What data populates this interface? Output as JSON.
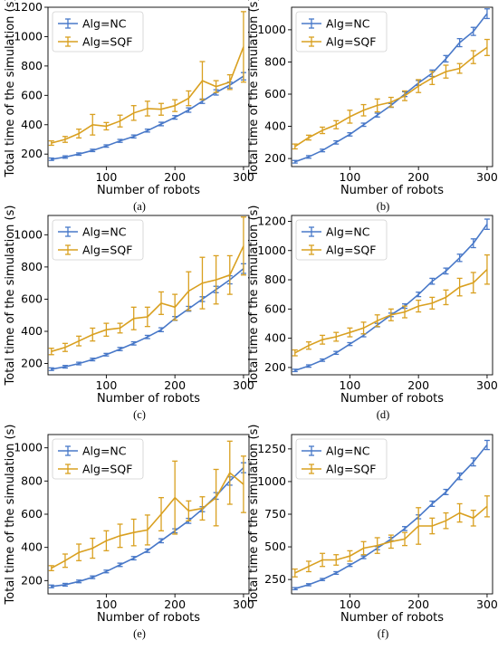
{
  "figure": {
    "colors": {
      "nc": "#4878c8",
      "sqf": "#d9a020"
    },
    "series_names": [
      "Alg=NC",
      "Alg=SQF"
    ],
    "x_ticks": [
      100,
      200,
      300
    ],
    "xlabel": "Number of robots",
    "ylabel": "Total time of the simulation (s)"
  },
  "chart_data": [
    {
      "type": "line",
      "caption": "(a)",
      "xlim": [
        15,
        308
      ],
      "ylim": [
        115,
        1200
      ],
      "y_ticks": [
        200,
        400,
        600,
        800,
        1000,
        1200
      ],
      "x": [
        20,
        40,
        60,
        80,
        100,
        120,
        140,
        160,
        180,
        200,
        220,
        240,
        260,
        280,
        300
      ],
      "series": [
        {
          "name": "Alg=NC",
          "values": [
            165,
            180,
            200,
            225,
            255,
            290,
            320,
            360,
            405,
            450,
            500,
            560,
            620,
            670,
            730
          ],
          "err": [
            8,
            8,
            8,
            8,
            8,
            10,
            10,
            10,
            12,
            12,
            15,
            15,
            18,
            20,
            25
          ]
        },
        {
          "name": "Alg=SQF",
          "values": [
            275,
            300,
            340,
            400,
            390,
            425,
            480,
            510,
            505,
            530,
            580,
            700,
            660,
            690,
            930
          ],
          "err": [
            15,
            20,
            30,
            70,
            25,
            40,
            50,
            50,
            40,
            40,
            50,
            130,
            40,
            50,
            240
          ]
        }
      ]
    },
    {
      "type": "line",
      "caption": "(b)",
      "xlim": [
        15,
        308
      ],
      "ylim": [
        150,
        1140
      ],
      "y_ticks": [
        200,
        400,
        600,
        800,
        1000
      ],
      "x": [
        20,
        40,
        60,
        80,
        100,
        120,
        140,
        160,
        180,
        200,
        220,
        240,
        260,
        280,
        300
      ],
      "series": [
        {
          "name": "Alg=NC",
          "values": [
            180,
            210,
            250,
            300,
            350,
            410,
            470,
            530,
            600,
            670,
            730,
            820,
            920,
            990,
            1100
          ],
          "err": [
            8,
            8,
            8,
            10,
            10,
            10,
            12,
            12,
            15,
            15,
            20,
            20,
            25,
            25,
            30
          ]
        },
        {
          "name": "Alg=SQF",
          "values": [
            275,
            330,
            375,
            410,
            460,
            500,
            530,
            550,
            590,
            650,
            700,
            740,
            760,
            830,
            890
          ],
          "err": [
            15,
            15,
            20,
            25,
            40,
            35,
            40,
            30,
            30,
            40,
            40,
            40,
            30,
            40,
            50
          ]
        }
      ]
    },
    {
      "type": "line",
      "caption": "(c)",
      "xlim": [
        15,
        308
      ],
      "ylim": [
        130,
        1120
      ],
      "y_ticks": [
        200,
        400,
        600,
        800,
        1000
      ],
      "x": [
        20,
        40,
        60,
        80,
        100,
        120,
        140,
        160,
        180,
        200,
        220,
        240,
        260,
        280,
        300
      ],
      "series": [
        {
          "name": "Alg=NC",
          "values": [
            165,
            180,
            200,
            225,
            255,
            290,
            325,
            365,
            410,
            480,
            540,
            600,
            660,
            720,
            790
          ],
          "err": [
            8,
            8,
            8,
            8,
            8,
            10,
            10,
            10,
            12,
            12,
            15,
            15,
            20,
            25,
            30
          ]
        },
        {
          "name": "Alg=SQF",
          "values": [
            275,
            300,
            340,
            380,
            410,
            420,
            480,
            490,
            575,
            550,
            650,
            700,
            720,
            750,
            930
          ],
          "err": [
            20,
            25,
            30,
            40,
            40,
            30,
            70,
            60,
            70,
            80,
            120,
            160,
            150,
            120,
            180
          ]
        }
      ]
    },
    {
      "type": "line",
      "caption": "(d)",
      "xlim": [
        15,
        308
      ],
      "ylim": [
        150,
        1240
      ],
      "y_ticks": [
        200,
        400,
        600,
        800,
        1000,
        1200
      ],
      "x": [
        20,
        40,
        60,
        80,
        100,
        120,
        140,
        160,
        180,
        200,
        220,
        240,
        260,
        280,
        300
      ],
      "series": [
        {
          "name": "Alg=NC",
          "values": [
            180,
            210,
            250,
            300,
            360,
            420,
            490,
            560,
            620,
            700,
            790,
            860,
            950,
            1050,
            1180
          ],
          "err": [
            8,
            8,
            8,
            10,
            10,
            10,
            12,
            12,
            15,
            15,
            20,
            20,
            25,
            30,
            35
          ]
        },
        {
          "name": "Alg=SQF",
          "values": [
            300,
            350,
            390,
            410,
            440,
            470,
            520,
            560,
            580,
            620,
            640,
            680,
            750,
            780,
            870
          ],
          "err": [
            20,
            25,
            30,
            30,
            30,
            40,
            40,
            40,
            40,
            40,
            40,
            50,
            60,
            70,
            100
          ]
        }
      ]
    },
    {
      "type": "line",
      "caption": "(e)",
      "xlim": [
        15,
        308
      ],
      "ylim": [
        120,
        1080
      ],
      "y_ticks": [
        200,
        400,
        600,
        800,
        1000
      ],
      "x": [
        20,
        40,
        60,
        80,
        100,
        120,
        140,
        160,
        180,
        200,
        220,
        240,
        260,
        280,
        300
      ],
      "series": [
        {
          "name": "Alg=NC",
          "values": [
            165,
            175,
            195,
            220,
            255,
            295,
            335,
            380,
            440,
            500,
            560,
            630,
            710,
            800,
            880
          ],
          "err": [
            8,
            8,
            8,
            8,
            8,
            10,
            10,
            10,
            12,
            12,
            15,
            15,
            20,
            25,
            30
          ]
        },
        {
          "name": "Alg=SQF",
          "values": [
            275,
            320,
            370,
            395,
            440,
            470,
            490,
            505,
            600,
            700,
            620,
            635,
            700,
            850,
            780
          ],
          "err": [
            15,
            40,
            50,
            60,
            60,
            70,
            80,
            90,
            100,
            220,
            60,
            70,
            170,
            190,
            170
          ]
        }
      ]
    },
    {
      "type": "line",
      "caption": "(f)",
      "xlim": [
        15,
        308
      ],
      "ylim": [
        140,
        1360
      ],
      "y_ticks": [
        250,
        500,
        750,
        1000,
        1250
      ],
      "x": [
        20,
        40,
        60,
        80,
        100,
        120,
        140,
        160,
        180,
        200,
        220,
        240,
        260,
        280,
        300
      ],
      "series": [
        {
          "name": "Alg=NC",
          "values": [
            180,
            210,
            250,
            300,
            360,
            420,
            490,
            560,
            640,
            730,
            830,
            920,
            1040,
            1150,
            1280
          ],
          "err": [
            8,
            8,
            8,
            10,
            10,
            10,
            12,
            12,
            15,
            15,
            20,
            20,
            25,
            30,
            35
          ]
        },
        {
          "name": "Alg=SQF",
          "values": [
            300,
            350,
            400,
            400,
            430,
            490,
            510,
            540,
            560,
            660,
            660,
            700,
            760,
            720,
            810
          ],
          "err": [
            30,
            40,
            50,
            40,
            40,
            50,
            60,
            50,
            50,
            140,
            60,
            60,
            70,
            60,
            80
          ]
        }
      ]
    }
  ]
}
